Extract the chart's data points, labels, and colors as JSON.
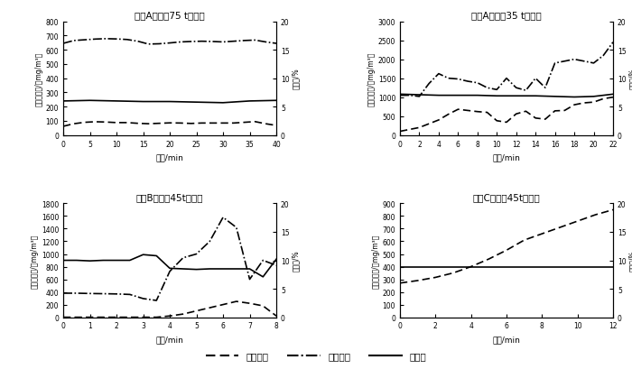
{
  "subplots": [
    {
      "title": "糖厂A数据（75 t锅炉）",
      "xlim": [
        0,
        40
      ],
      "xticks": [
        0,
        5,
        10,
        15,
        20,
        25,
        30,
        35,
        40
      ],
      "ylim": [
        0,
        800
      ],
      "yticks": [
        0,
        100,
        200,
        300,
        400,
        500,
        600,
        700,
        800
      ],
      "y2lim": [
        0,
        20
      ],
      "y2ticks": [
        0,
        5,
        10,
        15,
        20
      ],
      "so2_x": [
        0,
        2,
        4,
        6,
        8,
        10,
        12,
        14,
        16,
        18,
        20,
        22,
        24,
        26,
        28,
        30,
        32,
        34,
        36,
        38,
        40
      ],
      "so2_y": [
        62,
        80,
        90,
        94,
        92,
        88,
        88,
        83,
        80,
        83,
        86,
        85,
        82,
        85,
        85,
        85,
        85,
        90,
        95,
        80,
        68
      ],
      "co_x": [
        0,
        2,
        4,
        6,
        8,
        10,
        12,
        14,
        16,
        18,
        20,
        22,
        24,
        26,
        28,
        30,
        32,
        34,
        36,
        38,
        40
      ],
      "co_y": [
        645,
        665,
        670,
        675,
        678,
        676,
        672,
        660,
        640,
        642,
        648,
        655,
        658,
        660,
        658,
        655,
        660,
        665,
        668,
        655,
        645
      ],
      "o2_x": [
        0,
        5,
        10,
        15,
        20,
        25,
        30,
        35,
        40
      ],
      "o2_y": [
        6.0,
        6.1,
        6.0,
        5.9,
        5.9,
        5.8,
        5.7,
        6.0,
        6.1
      ]
    },
    {
      "title": "糖厂A数据（35 t锅炉）",
      "xlim": [
        0,
        22
      ],
      "xticks": [
        0,
        2,
        4,
        6,
        8,
        10,
        12,
        14,
        16,
        18,
        20,
        22
      ],
      "ylim": [
        0,
        3000
      ],
      "yticks": [
        0,
        500,
        1000,
        1500,
        2000,
        2500,
        3000
      ],
      "y2lim": [
        0,
        20
      ],
      "y2ticks": [
        0,
        5,
        10,
        15,
        20
      ],
      "so2_x": [
        0,
        1,
        2,
        3,
        4,
        5,
        6,
        7,
        8,
        9,
        10,
        11,
        12,
        13,
        14,
        15,
        16,
        17,
        18,
        19,
        20,
        21,
        22
      ],
      "so2_y": [
        100,
        150,
        200,
        300,
        400,
        550,
        680,
        650,
        620,
        600,
        380,
        340,
        560,
        630,
        450,
        420,
        640,
        650,
        800,
        850,
        870,
        960,
        1000
      ],
      "co_x": [
        0,
        1,
        2,
        3,
        4,
        5,
        6,
        7,
        8,
        9,
        10,
        11,
        12,
        13,
        14,
        15,
        16,
        17,
        18,
        19,
        20,
        21,
        22
      ],
      "co_y": [
        1050,
        1050,
        1020,
        1360,
        1620,
        1500,
        1480,
        1420,
        1380,
        1250,
        1200,
        1500,
        1250,
        1180,
        1500,
        1250,
        1900,
        1950,
        2000,
        1950,
        1900,
        2100,
        2450
      ],
      "o2_x": [
        0,
        2,
        4,
        6,
        8,
        10,
        12,
        14,
        16,
        18,
        20,
        22
      ],
      "o2_y": [
        7.2,
        7.1,
        7.0,
        7.0,
        7.0,
        6.9,
        6.9,
        6.9,
        6.8,
        6.7,
        6.8,
        7.2
      ]
    },
    {
      "title": "糖厂B数据（45t锅炉）",
      "xlim": [
        0,
        8
      ],
      "xticks": [
        0,
        1,
        2,
        3,
        4,
        5,
        6,
        7,
        8
      ],
      "ylim": [
        0,
        1800
      ],
      "yticks": [
        0,
        200,
        400,
        600,
        800,
        1000,
        1200,
        1400,
        1600,
        1800
      ],
      "y2lim": [
        0,
        20
      ],
      "y2ticks": [
        0,
        5,
        10,
        15,
        20
      ],
      "so2_x": [
        0,
        0.5,
        1,
        1.5,
        2,
        2.5,
        3,
        3.5,
        4,
        4.5,
        5,
        5.5,
        6,
        6.5,
        7,
        7.5,
        8
      ],
      "so2_y": [
        0,
        0,
        0,
        0,
        0,
        0,
        0,
        0,
        20,
        50,
        100,
        150,
        200,
        250,
        220,
        180,
        20
      ],
      "co_x": [
        0,
        0.5,
        1,
        1.5,
        2,
        2.5,
        3,
        3.5,
        4,
        4.5,
        5,
        5.5,
        6,
        6.5,
        7,
        7.5,
        8
      ],
      "co_y": [
        380,
        380,
        375,
        372,
        368,
        360,
        295,
        265,
        725,
        940,
        1000,
        1200,
        1580,
        1420,
        600,
        900,
        820
      ],
      "o2_x": [
        0,
        0.5,
        1,
        1.5,
        2,
        2.5,
        3,
        3.5,
        4,
        4.5,
        5,
        5.5,
        6,
        6.5,
        7,
        7.5,
        8
      ],
      "o2_y": [
        10.0,
        10.0,
        9.9,
        10.0,
        10.0,
        10.0,
        11.0,
        10.8,
        8.6,
        8.5,
        8.4,
        8.5,
        8.5,
        8.5,
        8.5,
        7.1,
        10.2
      ]
    },
    {
      "title": "糖厂C数据（45t锅炉）",
      "xlim": [
        0,
        12
      ],
      "xticks": [
        0,
        2,
        4,
        6,
        8,
        10,
        12
      ],
      "ylim": [
        0,
        900
      ],
      "yticks": [
        0,
        100,
        200,
        300,
        400,
        500,
        600,
        700,
        800,
        900
      ],
      "y2lim": [
        0,
        20
      ],
      "y2ticks": [
        0,
        5,
        10,
        15,
        20
      ],
      "so2_x": [
        0,
        1,
        2,
        3,
        4,
        5,
        6,
        7,
        8,
        9,
        10,
        11,
        12
      ],
      "so2_y": [
        270,
        290,
        315,
        350,
        400,
        460,
        530,
        610,
        660,
        710,
        760,
        810,
        850
      ],
      "co_x": [],
      "co_y": [],
      "o2_x": [
        0,
        1,
        2,
        3,
        4,
        5,
        6,
        7,
        8,
        9,
        10,
        11,
        12
      ],
      "o2_y": [
        8.8,
        8.8,
        8.8,
        8.8,
        8.8,
        8.8,
        8.8,
        8.8,
        8.8,
        8.8,
        8.8,
        8.8,
        8.8
      ]
    }
  ],
  "legend_labels": [
    "二氧化硫",
    "一氧化碳",
    "含氧量"
  ],
  "xlabel": "时间/min",
  "ylabel_left": "污染物浓度/（mg/m³）",
  "ylabel_right": "含氧量/%",
  "so2_color": "#000000",
  "co_color": "#000000",
  "o2_color": "#000000"
}
